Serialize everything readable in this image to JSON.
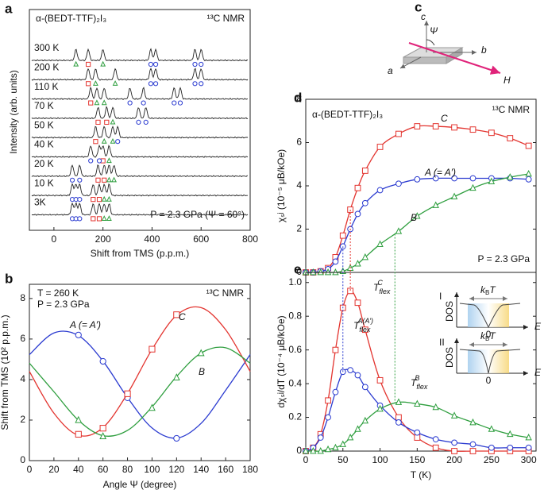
{
  "panel_labels": [
    "a",
    "b",
    "c",
    "d",
    "e"
  ],
  "panel_c": {
    "axis_c": "c",
    "axis_b": "b",
    "axis_a": "a",
    "angle": "Ψ",
    "field": "H"
  },
  "chart_data": [
    {
      "type": "spectra",
      "title": "α-(BEDT-TTF)₂I₃",
      "annotation": "¹³C NMR",
      "note": "P = 2.3 GPa (Ψ = 60°)",
      "x_label": "Shift from TMS (p.p.m.)",
      "y_label": "Intensity (arb. units)",
      "xlim": [
        -100,
        800
      ],
      "xticks": [
        0,
        200,
        400,
        600,
        800
      ],
      "colors": {
        "C": "#e3342f",
        "A": "#2b3bd0",
        "B": "#2e9e3e"
      },
      "traces": [
        {
          "label": "300 K",
          "C": [
            140
          ],
          "A": [
            395,
            415,
            575,
            600
          ],
          "B": [
            90,
            200
          ]
        },
        {
          "label": "200 K",
          "C": [
            140
          ],
          "A": [
            395,
            415,
            575,
            600
          ],
          "B": [
            170,
            250
          ]
        },
        {
          "label": "110 K",
          "C": [
            150
          ],
          "A": [
            310,
            365,
            490,
            515
          ],
          "B": [
            175,
            205
          ]
        },
        {
          "label": "70 K",
          "C": [
            180,
            215
          ],
          "A": [
            345,
            375
          ],
          "B": [
            240
          ]
        },
        {
          "label": "50 K",
          "C": [
            170
          ],
          "A": [
            260
          ],
          "B": [
            205,
            240
          ]
        },
        {
          "label": "40 K",
          "C": [
            200
          ],
          "A": [
            150,
            185
          ],
          "B": [
            225
          ]
        },
        {
          "label": "20 K",
          "C": [
            180,
            205
          ],
          "A": [
            75,
            105
          ],
          "B": [
            225,
            245
          ]
        },
        {
          "label": "10 K",
          "C": [
            160,
            185
          ],
          "A": [
            75,
            90,
            105
          ],
          "B": [
            205,
            225
          ]
        },
        {
          "label": "3K",
          "C": [
            160,
            185
          ],
          "A": [
            75,
            90,
            105
          ],
          "B": [
            205,
            225
          ]
        }
      ]
    },
    {
      "type": "line",
      "annotation": "¹³C NMR",
      "notes": [
        "T = 260 K",
        "P = 2.3 GPa"
      ],
      "x_label": "Angle Ψ (degree)",
      "y_label": "Shift from TMS (10² p.p.m.)",
      "xlim": [
        0,
        180
      ],
      "xticks": [
        0,
        20,
        40,
        60,
        80,
        100,
        120,
        140,
        160,
        180
      ],
      "ylim": [
        0,
        8.7
      ],
      "yticks": [
        0,
        2,
        4,
        6,
        8
      ],
      "fit_x": [
        0,
        20,
        40,
        60,
        80,
        100,
        120,
        140,
        160,
        180
      ],
      "series": [
        {
          "name": "A (= A′)",
          "color": "#2b3bd0",
          "marker": "circle",
          "x": [
            40,
            60,
            80,
            120
          ],
          "values": [
            6.2,
            4.9,
            3.1,
            1.1
          ],
          "fit": [
            5.23,
            6.3,
            6.17,
            4.91,
            3.11,
            1.61,
            1.11,
            1.84,
            3.47,
            5.23
          ]
        },
        {
          "name": "C",
          "color": "#e3342f",
          "marker": "square",
          "x": [
            40,
            60,
            80,
            100,
            120
          ],
          "values": [
            1.3,
            1.6,
            3.3,
            5.5,
            7.2
          ],
          "fit": [
            4.4,
            2.34,
            1.25,
            1.63,
            3.31,
            5.49,
            7.17,
            7.55,
            6.46,
            4.4
          ]
        },
        {
          "name": "B",
          "color": "#2e9e3e",
          "marker": "triangle",
          "x": [
            40,
            60,
            100,
            120,
            140
          ],
          "values": [
            2.0,
            1.2,
            2.6,
            4.1,
            5.3
          ],
          "fit": [
            4.81,
            3.4,
            1.99,
            1.23,
            1.49,
            2.65,
            4.15,
            5.31,
            5.57,
            4.81
          ]
        }
      ]
    },
    {
      "type": "line",
      "title": "α-(BEDT-TTF)₂I₃",
      "annotation": "¹³C NMR",
      "note": "P = 2.3 GPa",
      "y_label": "χₛʲ (10⁻⁵ μB/kOe)",
      "xlim": [
        0,
        310
      ],
      "ylim": [
        0,
        8
      ],
      "yticks": [
        0,
        2,
        4,
        6,
        8
      ],
      "x": [
        0,
        10,
        20,
        30,
        40,
        50,
        60,
        70,
        80,
        100,
        125,
        150,
        175,
        200,
        225,
        250,
        275,
        300
      ],
      "series": [
        {
          "name": "C",
          "color": "#e3342f",
          "marker": "square",
          "values": [
            0,
            0,
            0.05,
            0.2,
            0.7,
            1.7,
            2.9,
            3.9,
            4.7,
            5.8,
            6.4,
            6.75,
            6.75,
            6.7,
            6.6,
            6.45,
            6.2,
            5.85
          ]
        },
        {
          "name": "A (= A′)",
          "color": "#2b3bd0",
          "marker": "circle",
          "values": [
            0,
            0,
            0.05,
            0.15,
            0.5,
            1.2,
            2.0,
            2.7,
            3.2,
            3.8,
            4.1,
            4.3,
            4.35,
            4.35,
            4.35,
            4.35,
            4.35,
            4.3
          ]
        },
        {
          "name": "B",
          "color": "#2e9e3e",
          "marker": "triangle",
          "values": [
            0,
            0,
            0,
            0,
            0,
            0.05,
            0.2,
            0.4,
            0.7,
            1.3,
            1.9,
            2.6,
            3.1,
            3.5,
            3.9,
            4.2,
            4.4,
            4.55
          ]
        }
      ]
    },
    {
      "type": "line",
      "y_label": "dχₛʲ/dT (10⁻⁴ μB/kOe)",
      "x_label": "T (K)",
      "xlim": [
        0,
        310
      ],
      "xticks": [
        0,
        50,
        100,
        150,
        200,
        250,
        300
      ],
      "ylim": [
        0,
        1.06
      ],
      "yticks": [
        0,
        0.2,
        0.4,
        0.6,
        0.8,
        {
          "value": 1,
          "label": "1.0"
        }
      ],
      "x": [
        0,
        10,
        20,
        30,
        40,
        50,
        60,
        70,
        80,
        100,
        125,
        150,
        175,
        200,
        225,
        250,
        275,
        300
      ],
      "series": [
        {
          "name": "C",
          "color": "#e3342f",
          "marker": "square",
          "values": [
            0,
            0.02,
            0.1,
            0.3,
            0.6,
            0.85,
            0.95,
            0.88,
            0.72,
            0.42,
            0.2,
            0.08,
            0.02,
            0,
            0,
            0,
            0,
            0
          ],
          "tflex": {
            "value": 60,
            "main": "T",
            "sub": "flex",
            "sup": "C"
          }
        },
        {
          "name": "A (= A′)",
          "color": "#2b3bd0",
          "marker": "circle",
          "values": [
            0,
            0.02,
            0.08,
            0.2,
            0.35,
            0.47,
            0.48,
            0.45,
            0.38,
            0.27,
            0.17,
            0.11,
            0.07,
            0.05,
            0.04,
            0.02,
            0.02,
            0.02
          ],
          "tflex": {
            "value": 50,
            "main": "T",
            "sub": "flex",
            "sup": "A(A′)"
          }
        },
        {
          "name": "B",
          "color": "#2e9e3e",
          "marker": "triangle",
          "values": [
            0,
            0,
            0,
            0.01,
            0.02,
            0.04,
            0.08,
            0.13,
            0.18,
            0.25,
            0.29,
            0.28,
            0.26,
            0.21,
            0.17,
            0.13,
            0.1,
            0.08
          ],
          "tflex": {
            "value": 120,
            "main": "T",
            "sub": "flex",
            "sup": "B"
          }
        }
      ],
      "insets": [
        {
          "label": "I",
          "y_label": "DOS",
          "x_label": "E",
          "origin": "0",
          "scale": {
            "main": "k",
            "sub": "B",
            "after": "T"
          }
        },
        {
          "label": "II",
          "y_label": "DOS",
          "x_label": "E",
          "origin": "0",
          "scale": {
            "main": "k",
            "sub": "B",
            "after": "T"
          }
        }
      ]
    }
  ]
}
